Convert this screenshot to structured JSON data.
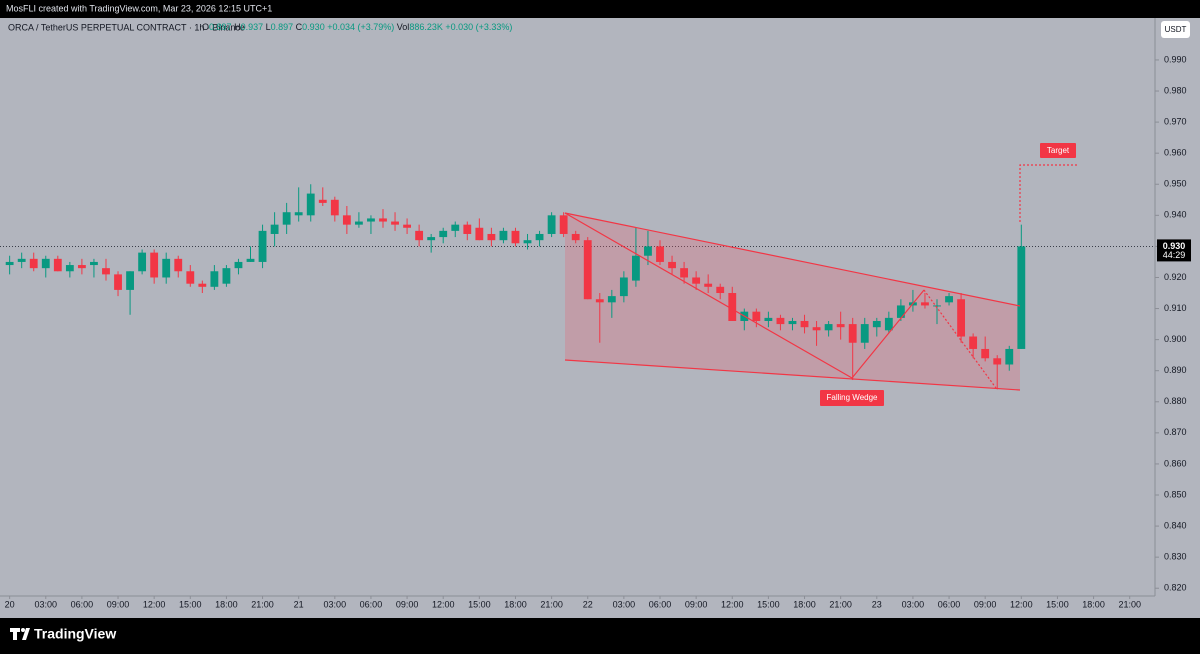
{
  "chart_data": {
    "type": "candlestick",
    "credit": "MosFLI created with TradingView.com, Mar 23, 2026 12:15 UTC+1",
    "symbol": "ORCA / TetherUS PERPETUAL CONTRACT · 1h · Binance",
    "legend": [
      {
        "key": "O",
        "value": "0.897"
      },
      {
        "key": "H",
        "value": "0.937"
      },
      {
        "key": "L",
        "value": "0.897"
      },
      {
        "key": "C",
        "value": "0.930"
      }
    ],
    "change": "+0.034 (+3.79%)",
    "volume_key": "Vol",
    "volume": "886.23K",
    "volume_change": "+0.030 (+3.33%)",
    "currency": "USDT",
    "last_price": {
      "value": 0.93,
      "label": "0.930"
    },
    "countdown": "44:29",
    "pattern_label": "Falling Wedge",
    "target_label": "Target",
    "brand": "TradingView",
    "up_color": "#089981",
    "down_color": "#f23645",
    "x": [
      0,
      1,
      2,
      3,
      4,
      5,
      6,
      7,
      8,
      9,
      10,
      11,
      12,
      13,
      14,
      15,
      16,
      17,
      18,
      19,
      20,
      21,
      22,
      23,
      24,
      25,
      26,
      27,
      28,
      29,
      30,
      31,
      32,
      33,
      34,
      35,
      36,
      37,
      38,
      39,
      40,
      41,
      42,
      43,
      44,
      45,
      46,
      47,
      48,
      49,
      50,
      51,
      52,
      53,
      54,
      55,
      56,
      57,
      58,
      59,
      60,
      61,
      62,
      63,
      64,
      65,
      66,
      67,
      68,
      69,
      70,
      71,
      72,
      73,
      74,
      75,
      76,
      77,
      78,
      79,
      80,
      81,
      82,
      83,
      84
    ],
    "open": [
      0.924,
      0.925,
      0.926,
      0.923,
      0.926,
      0.922,
      0.924,
      0.924,
      0.923,
      0.921,
      0.916,
      0.922,
      0.928,
      0.92,
      0.926,
      0.922,
      0.918,
      0.917,
      0.918,
      0.923,
      0.925,
      0.925,
      0.934,
      0.937,
      0.94,
      0.94,
      0.945,
      0.945,
      0.94,
      0.937,
      0.938,
      0.939,
      0.938,
      0.937,
      0.935,
      0.932,
      0.933,
      0.935,
      0.937,
      0.936,
      0.934,
      0.932,
      0.935,
      0.931,
      0.932,
      0.934,
      0.94,
      0.934,
      0.932,
      0.913,
      0.912,
      0.914,
      0.919,
      0.927,
      0.93,
      0.925,
      0.923,
      0.92,
      0.918,
      0.917,
      0.915,
      0.906,
      0.909,
      0.906,
      0.907,
      0.905,
      0.906,
      0.904,
      0.903,
      0.905,
      0.905,
      0.899,
      0.904,
      0.903,
      0.907,
      0.911,
      0.912,
      0.911,
      0.912,
      0.913,
      0.901,
      0.897,
      0.894,
      0.892,
      0.897
    ],
    "high": [
      0.927,
      0.928,
      0.928,
      0.927,
      0.927,
      0.925,
      0.926,
      0.926,
      0.926,
      0.922,
      0.922,
      0.929,
      0.929,
      0.928,
      0.927,
      0.924,
      0.919,
      0.924,
      0.924,
      0.926,
      0.93,
      0.937,
      0.941,
      0.944,
      0.949,
      0.95,
      0.949,
      0.946,
      0.943,
      0.941,
      0.94,
      0.942,
      0.941,
      0.939,
      0.937,
      0.934,
      0.936,
      0.938,
      0.938,
      0.939,
      0.936,
      0.936,
      0.936,
      0.934,
      0.935,
      0.941,
      0.941,
      0.935,
      0.933,
      0.915,
      0.916,
      0.922,
      0.936,
      0.935,
      0.932,
      0.927,
      0.925,
      0.922,
      0.921,
      0.918,
      0.917,
      0.91,
      0.91,
      0.909,
      0.908,
      0.907,
      0.908,
      0.906,
      0.906,
      0.909,
      0.907,
      0.907,
      0.907,
      0.909,
      0.913,
      0.916,
      0.915,
      0.913,
      0.915,
      0.915,
      0.902,
      0.901,
      0.895,
      0.898,
      0.937
    ],
    "low": [
      0.921,
      0.923,
      0.922,
      0.92,
      0.922,
      0.92,
      0.921,
      0.92,
      0.919,
      0.914,
      0.908,
      0.921,
      0.918,
      0.918,
      0.92,
      0.917,
      0.915,
      0.916,
      0.917,
      0.921,
      0.925,
      0.923,
      0.93,
      0.934,
      0.938,
      0.938,
      0.943,
      0.938,
      0.934,
      0.936,
      0.934,
      0.936,
      0.935,
      0.934,
      0.93,
      0.928,
      0.931,
      0.933,
      0.932,
      0.932,
      0.93,
      0.931,
      0.93,
      0.929,
      0.93,
      0.933,
      0.933,
      0.931,
      0.913,
      0.899,
      0.907,
      0.912,
      0.917,
      0.924,
      0.924,
      0.921,
      0.918,
      0.916,
      0.915,
      0.913,
      0.906,
      0.903,
      0.904,
      0.904,
      0.903,
      0.903,
      0.902,
      0.898,
      0.901,
      0.9,
      0.887,
      0.897,
      0.901,
      0.902,
      0.906,
      0.909,
      0.91,
      0.905,
      0.911,
      0.899,
      0.894,
      0.893,
      0.884,
      0.89,
      0.897
    ],
    "close": [
      0.925,
      0.926,
      0.923,
      0.926,
      0.922,
      0.924,
      0.923,
      0.925,
      0.921,
      0.916,
      0.922,
      0.928,
      0.92,
      0.926,
      0.922,
      0.918,
      0.917,
      0.922,
      0.923,
      0.925,
      0.926,
      0.935,
      0.937,
      0.941,
      0.941,
      0.947,
      0.944,
      0.94,
      0.937,
      0.938,
      0.939,
      0.938,
      0.937,
      0.936,
      0.932,
      0.933,
      0.935,
      0.937,
      0.934,
      0.932,
      0.932,
      0.935,
      0.931,
      0.932,
      0.934,
      0.94,
      0.934,
      0.932,
      0.913,
      0.912,
      0.914,
      0.92,
      0.927,
      0.93,
      0.925,
      0.923,
      0.92,
      0.918,
      0.917,
      0.915,
      0.906,
      0.909,
      0.906,
      0.907,
      0.905,
      0.906,
      0.904,
      0.903,
      0.905,
      0.904,
      0.899,
      0.905,
      0.906,
      0.907,
      0.911,
      0.912,
      0.911,
      0.911,
      0.914,
      0.901,
      0.897,
      0.894,
      0.892,
      0.897,
      0.93
    ],
    "xlim": [
      -0.8,
      95.1
    ],
    "ylim": [
      0.8175,
      1.0035
    ],
    "xticks": [
      {
        "value": 0,
        "label": "20"
      },
      {
        "value": 3,
        "label": "03:00"
      },
      {
        "value": 6,
        "label": "06:00"
      },
      {
        "value": 9,
        "label": "09:00"
      },
      {
        "value": 12,
        "label": "12:00"
      },
      {
        "value": 15,
        "label": "15:00"
      },
      {
        "value": 18,
        "label": "18:00"
      },
      {
        "value": 21,
        "label": "21:00"
      },
      {
        "value": 24,
        "label": "21"
      },
      {
        "value": 27,
        "label": "03:00"
      },
      {
        "value": 30,
        "label": "06:00"
      },
      {
        "value": 33,
        "label": "09:00"
      },
      {
        "value": 36,
        "label": "12:00"
      },
      {
        "value": 39,
        "label": "15:00"
      },
      {
        "value": 42,
        "label": "18:00"
      },
      {
        "value": 45,
        "label": "21:00"
      },
      {
        "value": 48,
        "label": "22"
      },
      {
        "value": 51,
        "label": "03:00"
      },
      {
        "value": 54,
        "label": "06:00"
      },
      {
        "value": 57,
        "label": "09:00"
      },
      {
        "value": 60,
        "label": "12:00"
      },
      {
        "value": 63,
        "label": "15:00"
      },
      {
        "value": 66,
        "label": "18:00"
      },
      {
        "value": 69,
        "label": "21:00"
      },
      {
        "value": 72,
        "label": "23"
      },
      {
        "value": 75,
        "label": "03:00"
      },
      {
        "value": 78,
        "label": "06:00"
      },
      {
        "value": 81,
        "label": "09:00"
      },
      {
        "value": 84,
        "label": "12:00"
      },
      {
        "value": 87,
        "label": "15:00"
      },
      {
        "value": 90,
        "label": "18:00"
      },
      {
        "value": 93,
        "label": "21:00"
      }
    ],
    "yticks": [
      {
        "value": 0.99,
        "label": "0.990"
      },
      {
        "value": 0.98,
        "label": "0.980"
      },
      {
        "value": 0.97,
        "label": "0.970"
      },
      {
        "value": 0.96,
        "label": "0.960"
      },
      {
        "value": 0.95,
        "label": "0.950"
      },
      {
        "value": 0.94,
        "label": "0.940"
      },
      {
        "value": 0.93,
        "label": "0.930"
      },
      {
        "value": 0.92,
        "label": "0.920"
      },
      {
        "value": 0.91,
        "label": "0.910"
      },
      {
        "value": 0.9,
        "label": "0.900"
      },
      {
        "value": 0.89,
        "label": "0.890"
      },
      {
        "value": 0.88,
        "label": "0.880"
      },
      {
        "value": 0.87,
        "label": "0.870"
      },
      {
        "value": 0.86,
        "label": "0.860"
      },
      {
        "value": 0.85,
        "label": "0.850"
      },
      {
        "value": 0.84,
        "label": "0.840"
      },
      {
        "value": 0.83,
        "label": "0.830"
      },
      {
        "value": 0.82,
        "label": "0.820"
      }
    ]
  }
}
